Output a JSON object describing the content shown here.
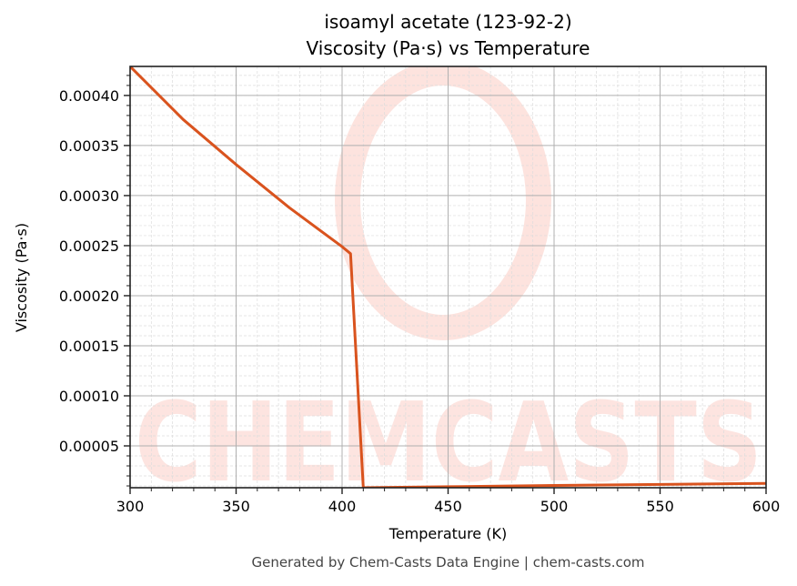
{
  "chart_data": {
    "type": "line",
    "title": "isoamyl acetate (123-92-2)",
    "subtitle": "Viscosity (Pa·s) vs Temperature",
    "xlabel": "Temperature (K)",
    "ylabel": "Viscosity (Pa·s)",
    "xlim": [
      300,
      600
    ],
    "ylim": [
      8.2e-06,
      0.000429
    ],
    "xticks": [
      300,
      350,
      400,
      450,
      500,
      550,
      600
    ],
    "xtick_labels": [
      "300",
      "350",
      "400",
      "450",
      "500",
      "550",
      "600"
    ],
    "yticks": [
      5e-05,
      0.0001,
      0.00015,
      0.0002,
      0.00025,
      0.0003,
      0.00035,
      0.0004
    ],
    "ytick_labels": [
      "0.00005",
      "0.00010",
      "0.00015",
      "0.00020",
      "0.00025",
      "0.00030",
      "0.00035",
      "0.00040"
    ],
    "grid": true,
    "minor_grid": true,
    "legend": null,
    "series": [
      {
        "name": "Viscosity",
        "color": "#d9531e",
        "x": [
          300,
          325,
          350,
          375,
          400,
          404,
          410,
          450,
          500,
          550,
          600
        ],
        "y": [
          0.000429,
          0.000376,
          0.000331,
          0.000288,
          0.000249,
          0.000242,
          8.2e-06,
          9.2e-06,
          1.05e-05,
          1.15e-05,
          1.25e-05
        ]
      }
    ],
    "watermark": "CHEMCASTS"
  },
  "header": {
    "title": "isoamyl acetate (123-92-2)",
    "subtitle": "Viscosity (Pa·s) vs Temperature"
  },
  "axes": {
    "xlabel": "Temperature (K)",
    "ylabel": "Viscosity (Pa·s)"
  },
  "footer": {
    "text": "Generated by Chem-Casts Data Engine | chem-casts.com"
  },
  "colors": {
    "line": "#d9531e",
    "watermark": "#fddcd6",
    "major_grid": "#b0b0b0",
    "minor_grid": "#dcdcdc"
  }
}
